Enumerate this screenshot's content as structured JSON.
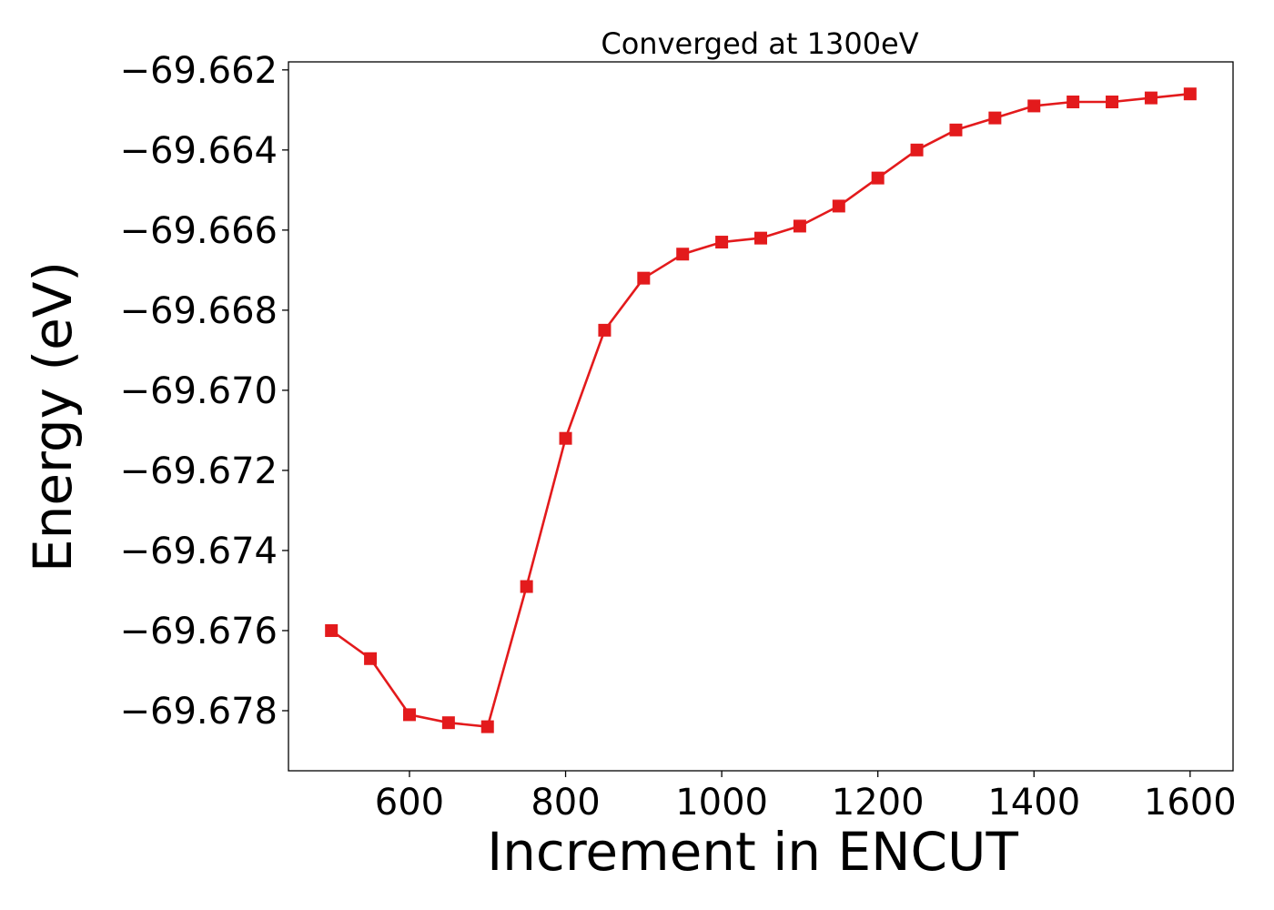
{
  "chart_data": {
    "type": "line",
    "title": "Converged at 1300eV",
    "xlabel": "Increment in ENCUT",
    "ylabel": "Energy (eV)",
    "xlim": [
      445,
      1655
    ],
    "ylim": [
      -69.6795,
      -69.6618
    ],
    "xticks": [
      600,
      800,
      1000,
      1200,
      1400,
      1600
    ],
    "xtick_labels": [
      "600",
      "800",
      "1000",
      "1200",
      "1400",
      "1600"
    ],
    "yticks": [
      -69.662,
      -69.664,
      -69.666,
      -69.668,
      -69.67,
      -69.672,
      -69.674,
      -69.676,
      -69.678
    ],
    "ytick_labels": [
      "−69.662",
      "−69.664",
      "−69.666",
      "−69.668",
      "−69.670",
      "−69.672",
      "−69.674",
      "−69.676",
      "−69.678"
    ],
    "grid": false,
    "colors": {
      "series": "#e31a1c"
    },
    "series": [
      {
        "marker": "square",
        "x": [
          500,
          550,
          600,
          650,
          700,
          750,
          800,
          850,
          900,
          950,
          1000,
          1050,
          1100,
          1150,
          1200,
          1250,
          1300,
          1350,
          1400,
          1450,
          1500,
          1550,
          1600
        ],
        "y": [
          -69.676,
          -69.6767,
          -69.6781,
          -69.6783,
          -69.6784,
          -69.6749,
          -69.6712,
          -69.6685,
          -69.6672,
          -69.6666,
          -69.6663,
          -69.6662,
          -69.6659,
          -69.6654,
          -69.6647,
          -69.664,
          -69.6635,
          -69.6632,
          -69.6629,
          -69.6628,
          -69.6628,
          -69.6627,
          -69.6626
        ]
      }
    ]
  }
}
